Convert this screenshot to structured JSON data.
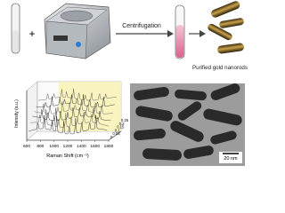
{
  "top": {
    "plus": "+",
    "step_label": "Centrifugation",
    "product_label": "Purified gold nanorods"
  },
  "raman_plot": {
    "y_label": "Intensity (a.u.)",
    "x_label": "Raman Shift (cm⁻¹)",
    "x_ticks": [
      600,
      800,
      1000,
      1200,
      1400,
      1600,
      1800
    ],
    "depth_ticks": [
      0.25,
      0.2,
      0.15,
      0.1,
      0.05,
      0
    ]
  },
  "tem_image": {
    "scale_bar": "20 nm"
  }
}
